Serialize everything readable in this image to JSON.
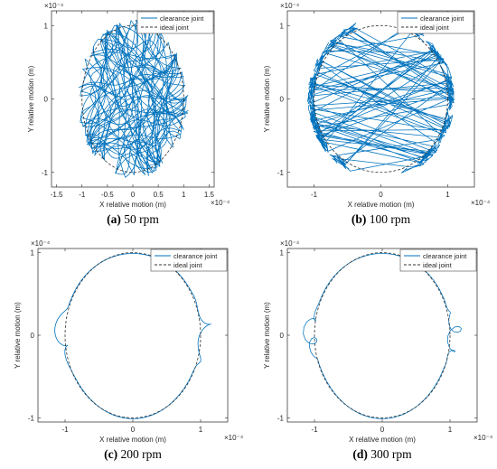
{
  "colors": {
    "clearance": "#0072BD",
    "ideal": "#333333",
    "axis": "#262626"
  },
  "chart_data": [
    {
      "type": "line",
      "caption_letter": "(a)",
      "caption_text": " 50 rpm",
      "xlabel": "X relative motion (m)",
      "ylabel": "Y relative motion (m)",
      "x_exponent": "×10⁻⁴",
      "y_exponent": "×10⁻⁴",
      "xlim": [
        -1.6,
        1.6
      ],
      "ylim": [
        -1.2,
        1.2
      ],
      "x_ticks": [
        "-1.5",
        "-1",
        "-0.5",
        "0",
        "0.5",
        "1",
        "1.5"
      ],
      "y_ticks": [
        "-1",
        "0",
        "1"
      ],
      "x_tick_values": [
        -1.5,
        -1,
        -0.5,
        0,
        0.5,
        1,
        1.5
      ],
      "y_tick_values": [
        -1,
        0,
        1
      ],
      "grid": false,
      "legend_position": "top-right",
      "series": [
        {
          "name": "clearance joint",
          "style": "solid",
          "pattern": "chaotic",
          "radius": 1.05,
          "ripple": 0.1
        },
        {
          "name": "ideal joint",
          "style": "dashed",
          "radius": 1.0
        }
      ]
    },
    {
      "type": "line",
      "caption_letter": "(b)",
      "caption_text": " 100 rpm",
      "xlabel": "X relative motion (m)",
      "ylabel": "Y relative motion (m)",
      "x_exponent": "×10⁻⁴",
      "y_exponent": "×10⁻⁴",
      "xlim": [
        -1.4,
        1.4
      ],
      "ylim": [
        -1.2,
        1.2
      ],
      "x_ticks": [
        "-1",
        "0",
        "1"
      ],
      "y_ticks": [
        "-1",
        "0",
        "1"
      ],
      "x_tick_values": [
        -1,
        0,
        1
      ],
      "y_tick_values": [
        -1,
        0,
        1
      ],
      "grid": false,
      "legend_position": "top-right",
      "series": [
        {
          "name": "clearance joint",
          "style": "solid",
          "pattern": "chords",
          "radius": 1.03
        },
        {
          "name": "ideal joint",
          "style": "dashed",
          "radius": 1.0
        }
      ]
    },
    {
      "type": "line",
      "caption_letter": "(c)",
      "caption_text": " 200 rpm",
      "xlabel": "X relative motion (m)",
      "ylabel": "Y relative motion (m)",
      "x_exponent": "×10⁻⁴",
      "y_exponent": "×10⁻⁴",
      "xlim": [
        -1.4,
        1.4
      ],
      "ylim": [
        -1.05,
        1.05
      ],
      "x_ticks": [
        "-1",
        "0",
        "1"
      ],
      "y_ticks": [
        "-1",
        "0",
        "1"
      ],
      "x_tick_values": [
        -1,
        0,
        1
      ],
      "y_tick_values": [
        -1,
        0,
        1
      ],
      "grid": false,
      "legend_position": "top-right",
      "series": [
        {
          "name": "clearance joint",
          "style": "solid",
          "pattern": "loops",
          "radius": 1.02
        },
        {
          "name": "ideal joint",
          "style": "dashed",
          "radius": 1.0
        }
      ]
    },
    {
      "type": "line",
      "caption_letter": "(d)",
      "caption_text": " 300 rpm",
      "xlabel": "X relative motion (m)",
      "ylabel": "Y relative motion (m)",
      "x_exponent": "×10⁻⁴",
      "y_exponent": "×10⁻⁴",
      "xlim": [
        -1.4,
        1.4
      ],
      "ylim": [
        -1.05,
        1.05
      ],
      "x_ticks": [
        "-1",
        "0",
        "1"
      ],
      "y_ticks": [
        "-1",
        "0",
        "1"
      ],
      "x_tick_values": [
        -1,
        0,
        1
      ],
      "y_tick_values": [
        -1,
        0,
        1
      ],
      "grid": false,
      "legend_position": "top-right",
      "series": [
        {
          "name": "clearance joint",
          "style": "solid",
          "pattern": "loops-dense",
          "radius": 1.02
        },
        {
          "name": "ideal joint",
          "style": "dashed",
          "radius": 1.0
        }
      ]
    }
  ]
}
